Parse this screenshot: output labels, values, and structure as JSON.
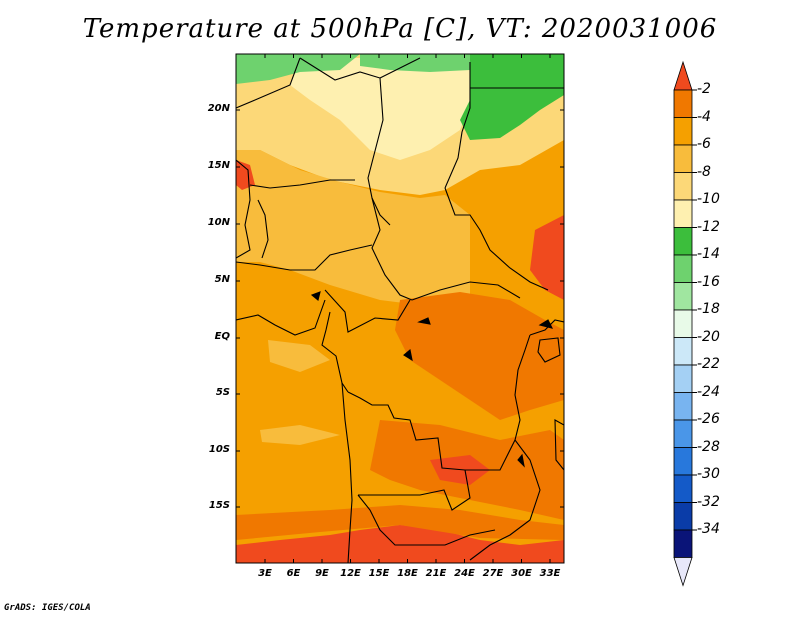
{
  "title": "Temperature at 500hPa [C], VT: 2020031006",
  "credit": "GrADS: IGES/COLA",
  "map": {
    "lat_labels": [
      "20N",
      "15N",
      "10N",
      "5N",
      "EQ",
      "5S",
      "10S",
      "15S"
    ],
    "lon_labels": [
      "3E",
      "6E",
      "9E",
      "12E",
      "15E",
      "18E",
      "21E",
      "24E",
      "27E",
      "30E",
      "33E"
    ]
  },
  "colorbar": {
    "labels": [
      "-2",
      "-4",
      "-6",
      "-8",
      "-10",
      "-12",
      "-14",
      "-16",
      "-18",
      "-20",
      "-22",
      "-24",
      "-26",
      "-28",
      "-30",
      "-32",
      "-34"
    ],
    "colors": [
      "#f04a1e",
      "#f07800",
      "#f5a000",
      "#f8bc3c",
      "#fcd878",
      "#fef0b0",
      "#3cbe3c",
      "#6ed26e",
      "#a0e6a0",
      "#e8fae8",
      "#cce8f8",
      "#a4d0f4",
      "#78b4f0",
      "#4a96e8",
      "#2878dc",
      "#145ac8",
      "#0a3ca8",
      "#0a1478",
      "#e8e8fa"
    ]
  },
  "colors": {
    "ocean": "#f5a000",
    "warm": "#f07800",
    "hot": "#f04a1e",
    "mild": "#f8bc3c",
    "cool": "#fcd878",
    "cooler": "#fef0b0",
    "green": "#3cbe3c",
    "lightgreen": "#6ed26e"
  }
}
